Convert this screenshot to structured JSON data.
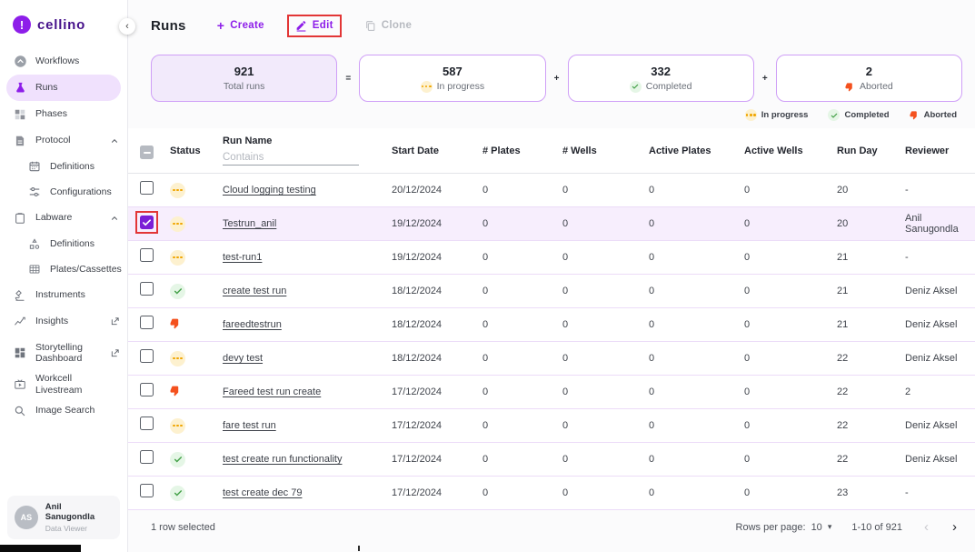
{
  "colors": {
    "brand_purple": "#8d1ee9",
    "card_border_purple": "#cf9ff7",
    "selected_row_bg": "#f7eefd",
    "in_progress_yellow": "#f0a500",
    "completed_green": "#43a047",
    "aborted_red": "#f4511e",
    "annotation_red": "#e23636"
  },
  "brand": {
    "name": "cellino",
    "collapse_icon": "‹"
  },
  "sidebar": {
    "items": [
      {
        "label": "Workflows"
      },
      {
        "label": "Runs"
      },
      {
        "label": "Phases"
      },
      {
        "label": "Protocol"
      },
      {
        "label": "Definitions"
      },
      {
        "label": "Configurations"
      },
      {
        "label": "Labware"
      },
      {
        "label": "Definitions"
      },
      {
        "label": "Plates/Cassettes"
      },
      {
        "label": "Instruments"
      },
      {
        "label": "Insights"
      },
      {
        "label": "Storytelling Dashboard"
      },
      {
        "label": "Workcell Livestream"
      },
      {
        "label": "Image Search"
      }
    ],
    "user": {
      "initials": "AS",
      "name": "Anil Sanugondla",
      "role": "Data Viewer"
    }
  },
  "header": {
    "title": "Runs",
    "create_label": "Create",
    "edit_label": "Edit",
    "clone_label": "Clone"
  },
  "stats": {
    "cards": [
      {
        "value": "921",
        "label": "Total runs"
      },
      {
        "value": "587",
        "label": "In progress",
        "status": "in-progress"
      },
      {
        "value": "332",
        "label": "Completed",
        "status": "completed"
      },
      {
        "value": "2",
        "label": "Aborted",
        "status": "aborted"
      }
    ],
    "operators": [
      "=",
      "+",
      "+"
    ],
    "legend": [
      {
        "label": "In progress",
        "status": "in-progress"
      },
      {
        "label": "Completed",
        "status": "completed"
      },
      {
        "label": "Aborted",
        "status": "aborted"
      }
    ]
  },
  "table": {
    "filter_placeholder": "Contains",
    "columns": {
      "status": "Status",
      "run_name": "Run Name",
      "start_date": "Start Date",
      "plates": "# Plates",
      "wells": "# Wells",
      "active_plates": "Active Plates",
      "active_wells": "Active Wells",
      "run_day": "Run Day",
      "reviewer": "Reviewer"
    },
    "rows": [
      {
        "selected": false,
        "status": "in-progress",
        "name": "Cloud logging testing",
        "start_date": "20/12/2024",
        "plates": "0",
        "wells": "0",
        "active_plates": "0",
        "active_wells": "0",
        "run_day": "20",
        "reviewer": "-"
      },
      {
        "selected": true,
        "status": "in-progress",
        "name": "Testrun_anil",
        "start_date": "19/12/2024",
        "plates": "0",
        "wells": "0",
        "active_plates": "0",
        "active_wells": "0",
        "run_day": "20",
        "reviewer": "Anil Sanugondla"
      },
      {
        "selected": false,
        "status": "in-progress",
        "name": "test-run1",
        "start_date": "19/12/2024",
        "plates": "0",
        "wells": "0",
        "active_plates": "0",
        "active_wells": "0",
        "run_day": "21",
        "reviewer": "-"
      },
      {
        "selected": false,
        "status": "completed",
        "name": "create test run",
        "start_date": "18/12/2024",
        "plates": "0",
        "wells": "0",
        "active_plates": "0",
        "active_wells": "0",
        "run_day": "21",
        "reviewer": "Deniz Aksel"
      },
      {
        "selected": false,
        "status": "aborted",
        "name": "fareedtestrun",
        "start_date": "18/12/2024",
        "plates": "0",
        "wells": "0",
        "active_plates": "0",
        "active_wells": "0",
        "run_day": "21",
        "reviewer": "Deniz Aksel"
      },
      {
        "selected": false,
        "status": "in-progress",
        "name": "devy test",
        "start_date": "18/12/2024",
        "plates": "0",
        "wells": "0",
        "active_plates": "0",
        "active_wells": "0",
        "run_day": "22",
        "reviewer": "Deniz Aksel"
      },
      {
        "selected": false,
        "status": "aborted",
        "name": "Fareed test run create",
        "start_date": "17/12/2024",
        "plates": "0",
        "wells": "0",
        "active_plates": "0",
        "active_wells": "0",
        "run_day": "22",
        "reviewer": "2"
      },
      {
        "selected": false,
        "status": "in-progress",
        "name": "fare test run",
        "start_date": "17/12/2024",
        "plates": "0",
        "wells": "0",
        "active_plates": "0",
        "active_wells": "0",
        "run_day": "22",
        "reviewer": "Deniz Aksel"
      },
      {
        "selected": false,
        "status": "completed",
        "name": "test create run functionality",
        "start_date": "17/12/2024",
        "plates": "0",
        "wells": "0",
        "active_plates": "0",
        "active_wells": "0",
        "run_day": "22",
        "reviewer": "Deniz Aksel"
      },
      {
        "selected": false,
        "status": "completed",
        "name": "test create dec 79",
        "start_date": "17/12/2024",
        "plates": "0",
        "wells": "0",
        "active_plates": "0",
        "active_wells": "0",
        "run_day": "23",
        "reviewer": "-"
      }
    ],
    "footer": {
      "selected_text": "1 row selected",
      "rows_per_page_label": "Rows per page:",
      "rows_per_page_value": "10",
      "dropdown_icon": "▾",
      "range_text": "1-10 of 921",
      "prev_icon": "‹",
      "next_icon": "›"
    }
  }
}
